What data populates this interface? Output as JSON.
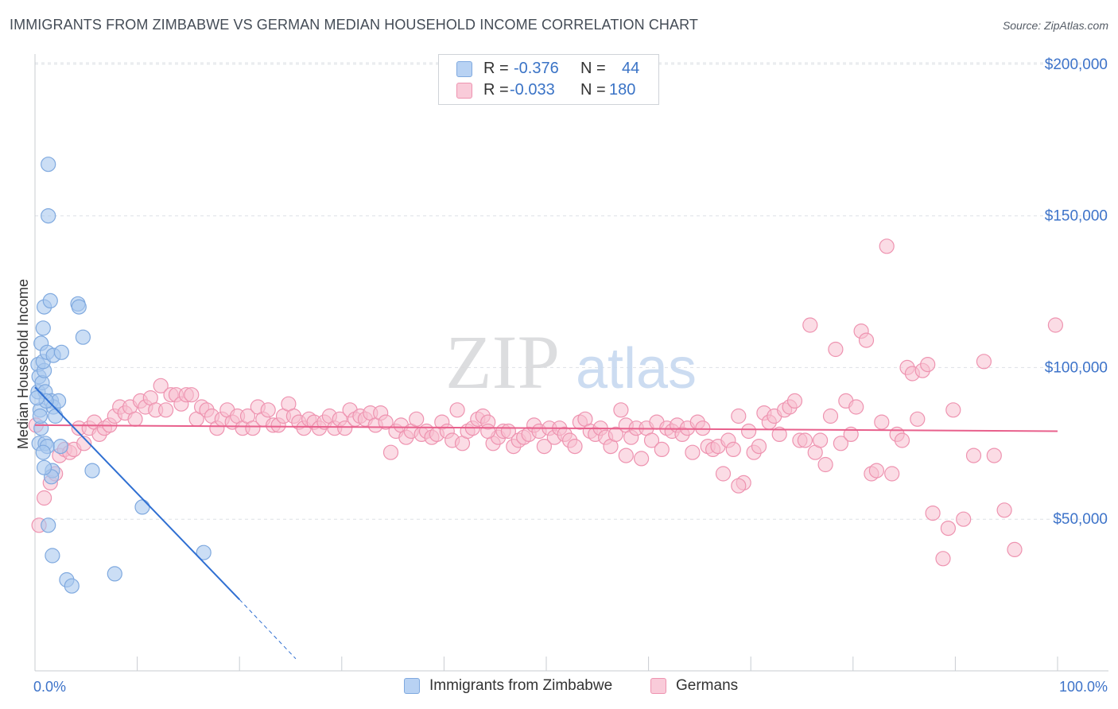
{
  "header": {
    "title": "IMMIGRANTS FROM ZIMBABWE VS GERMAN MEDIAN HOUSEHOLD INCOME CORRELATION CHART",
    "source": "Source: ZipAtlas.com"
  },
  "watermark": {
    "zip": "ZIP",
    "atlas": "atlas"
  },
  "legend": {
    "r_label": "R =",
    "n_label": "N =",
    "rows": [
      {
        "r": "-0.376",
        "n": "44"
      },
      {
        "r": "-0.033",
        "n": "180"
      }
    ]
  },
  "bottom_legend": [
    {
      "label": "Immigrants from Zimbabwe"
    },
    {
      "label": "Germans"
    }
  ],
  "colors": {
    "blue_fill": "#a9c8ef",
    "blue_stroke": "#7fa9df",
    "blue_line": "#2f6fd2",
    "pink_fill": "#f7bfd0",
    "pink_stroke": "#ee93b0",
    "pink_line": "#e8608c",
    "axis_text": "#3d73c9",
    "grid": "#dde1e6"
  },
  "chart_data": {
    "type": "scatter",
    "title": "IMMIGRANTS FROM ZIMBABWE VS GERMAN MEDIAN HOUSEHOLD INCOME CORRELATION CHART",
    "xlabel": "",
    "ylabel": "Median Household Income",
    "xlim": [
      0,
      100
    ],
    "ylim": [
      0,
      210000
    ],
    "x_tick_labels": [
      "0.0%",
      "100.0%"
    ],
    "y_ticks": [
      50000,
      100000,
      150000,
      200000
    ],
    "y_tick_labels": [
      "$50,000",
      "$100,000",
      "$150,000",
      "$200,000"
    ],
    "series": [
      {
        "name": "Immigrants from Zimbabwe",
        "r": -0.376,
        "n": 44,
        "trend": {
          "x0": 0,
          "y0": 93500,
          "x1": 20,
          "y1": 23500,
          "dash_x1": 25.5,
          "dash_y1": 4000
        },
        "points": [
          [
            0.3,
            101000
          ],
          [
            0.4,
            97000
          ],
          [
            0.3,
            92000
          ],
          [
            0.5,
            86000
          ],
          [
            0.6,
            80000
          ],
          [
            0.4,
            75000
          ],
          [
            0.7,
            95000
          ],
          [
            0.9,
            99000
          ],
          [
            0.8,
            102000
          ],
          [
            1.0,
            92000
          ],
          [
            0.6,
            108000
          ],
          [
            0.8,
            113000
          ],
          [
            0.9,
            120000
          ],
          [
            1.5,
            122000
          ],
          [
            1.2,
            105000
          ],
          [
            1.3,
            167000
          ],
          [
            1.3,
            150000
          ],
          [
            1.6,
            89000
          ],
          [
            1.8,
            87000
          ],
          [
            1.8,
            104000
          ],
          [
            2.3,
            89000
          ],
          [
            2.0,
            84000
          ],
          [
            2.6,
            105000
          ],
          [
            1.0,
            75000
          ],
          [
            1.2,
            74000
          ],
          [
            1.7,
            66000
          ],
          [
            0.8,
            72000
          ],
          [
            1.3,
            48000
          ],
          [
            1.6,
            64000
          ],
          [
            1.7,
            38000
          ],
          [
            3.1,
            30000
          ],
          [
            3.6,
            28000
          ],
          [
            4.2,
            121000
          ],
          [
            4.3,
            120000
          ],
          [
            4.7,
            110000
          ],
          [
            5.6,
            66000
          ],
          [
            7.8,
            32000
          ],
          [
            10.5,
            54000
          ],
          [
            16.5,
            39000
          ],
          [
            2.5,
            74000
          ],
          [
            0.9,
            67000
          ],
          [
            1.1,
            89000
          ],
          [
            0.5,
            84000
          ],
          [
            0.2,
            90000
          ]
        ]
      },
      {
        "name": "Germans",
        "r": -0.033,
        "n": 180,
        "trend": {
          "x0": 0,
          "y0": 81000,
          "x1": 100,
          "y1": 79000
        },
        "points": [
          [
            0.1,
            81000
          ],
          [
            0.4,
            48000
          ],
          [
            0.9,
            57000
          ],
          [
            1.5,
            62000
          ],
          [
            2.0,
            65000
          ],
          [
            2.4,
            71000
          ],
          [
            2.9,
            73000
          ],
          [
            3.4,
            72000
          ],
          [
            3.8,
            73000
          ],
          [
            4.3,
            80000
          ],
          [
            4.8,
            75000
          ],
          [
            5.3,
            80000
          ],
          [
            5.8,
            82000
          ],
          [
            6.3,
            78000
          ],
          [
            6.8,
            80000
          ],
          [
            7.3,
            81000
          ],
          [
            7.8,
            84000
          ],
          [
            8.3,
            87000
          ],
          [
            8.8,
            85000
          ],
          [
            9.3,
            87000
          ],
          [
            9.8,
            83000
          ],
          [
            10.3,
            89000
          ],
          [
            10.8,
            87000
          ],
          [
            11.3,
            90000
          ],
          [
            11.8,
            86000
          ],
          [
            12.3,
            94000
          ],
          [
            12.8,
            86000
          ],
          [
            13.3,
            91000
          ],
          [
            13.8,
            91000
          ],
          [
            14.3,
            88000
          ],
          [
            14.8,
            91000
          ],
          [
            15.3,
            91000
          ],
          [
            15.8,
            83000
          ],
          [
            16.3,
            87000
          ],
          [
            16.8,
            86000
          ],
          [
            17.3,
            84000
          ],
          [
            17.8,
            80000
          ],
          [
            18.3,
            83000
          ],
          [
            18.8,
            86000
          ],
          [
            19.3,
            82000
          ],
          [
            19.8,
            84000
          ],
          [
            20.3,
            80000
          ],
          [
            20.8,
            84000
          ],
          [
            21.3,
            80000
          ],
          [
            21.8,
            87000
          ],
          [
            22.3,
            83000
          ],
          [
            22.8,
            86000
          ],
          [
            23.3,
            81000
          ],
          [
            23.8,
            81000
          ],
          [
            24.3,
            84000
          ],
          [
            24.8,
            88000
          ],
          [
            25.3,
            84000
          ],
          [
            25.8,
            82000
          ],
          [
            26.3,
            80000
          ],
          [
            26.8,
            83000
          ],
          [
            27.3,
            82000
          ],
          [
            27.8,
            80000
          ],
          [
            28.3,
            82000
          ],
          [
            28.8,
            84000
          ],
          [
            29.3,
            80000
          ],
          [
            29.8,
            83000
          ],
          [
            30.3,
            80000
          ],
          [
            30.8,
            86000
          ],
          [
            31.3,
            83000
          ],
          [
            31.8,
            84000
          ],
          [
            32.3,
            83000
          ],
          [
            32.8,
            85000
          ],
          [
            33.3,
            81000
          ],
          [
            33.8,
            85000
          ],
          [
            34.3,
            82000
          ],
          [
            34.8,
            72000
          ],
          [
            35.3,
            79000
          ],
          [
            35.8,
            81000
          ],
          [
            36.3,
            77000
          ],
          [
            36.8,
            79000
          ],
          [
            37.3,
            83000
          ],
          [
            37.8,
            78000
          ],
          [
            38.3,
            79000
          ],
          [
            38.8,
            77000
          ],
          [
            39.3,
            78000
          ],
          [
            39.8,
            82000
          ],
          [
            40.3,
            79000
          ],
          [
            40.8,
            76000
          ],
          [
            41.3,
            86000
          ],
          [
            41.8,
            75000
          ],
          [
            42.3,
            79000
          ],
          [
            42.8,
            80000
          ],
          [
            43.3,
            83000
          ],
          [
            43.8,
            84000
          ],
          [
            44.3,
            82000
          ],
          [
            44.8,
            75000
          ],
          [
            45.3,
            77000
          ],
          [
            45.8,
            79000
          ],
          [
            46.3,
            79000
          ],
          [
            46.8,
            74000
          ],
          [
            47.3,
            76000
          ],
          [
            47.8,
            77000
          ],
          [
            48.3,
            78000
          ],
          [
            48.8,
            81000
          ],
          [
            49.3,
            79000
          ],
          [
            49.8,
            74000
          ],
          [
            50.3,
            80000
          ],
          [
            50.8,
            77000
          ],
          [
            51.3,
            80000
          ],
          [
            51.8,
            78000
          ],
          [
            52.3,
            76000
          ],
          [
            52.8,
            74000
          ],
          [
            53.3,
            82000
          ],
          [
            53.8,
            83000
          ],
          [
            54.3,
            79000
          ],
          [
            54.8,
            78000
          ],
          [
            55.3,
            80000
          ],
          [
            55.8,
            77000
          ],
          [
            56.3,
            74000
          ],
          [
            56.8,
            78000
          ],
          [
            57.3,
            86000
          ],
          [
            57.8,
            81000
          ],
          [
            58.3,
            77000
          ],
          [
            58.8,
            80000
          ],
          [
            59.3,
            70000
          ],
          [
            59.8,
            80000
          ],
          [
            60.3,
            76000
          ],
          [
            60.8,
            82000
          ],
          [
            61.3,
            73000
          ],
          [
            61.8,
            80000
          ],
          [
            62.3,
            79000
          ],
          [
            62.8,
            81000
          ],
          [
            63.3,
            78000
          ],
          [
            63.8,
            80000
          ],
          [
            64.3,
            72000
          ],
          [
            64.8,
            82000
          ],
          [
            65.3,
            80000
          ],
          [
            65.8,
            74000
          ],
          [
            66.3,
            73000
          ],
          [
            66.8,
            74000
          ],
          [
            67.3,
            65000
          ],
          [
            67.8,
            76000
          ],
          [
            68.3,
            73000
          ],
          [
            68.8,
            84000
          ],
          [
            69.3,
            62000
          ],
          [
            69.8,
            79000
          ],
          [
            70.3,
            72000
          ],
          [
            70.8,
            74000
          ],
          [
            71.3,
            85000
          ],
          [
            71.8,
            82000
          ],
          [
            72.3,
            84000
          ],
          [
            72.8,
            78000
          ],
          [
            73.3,
            86000
          ],
          [
            73.8,
            87000
          ],
          [
            74.3,
            89000
          ],
          [
            74.8,
            76000
          ],
          [
            75.3,
            76000
          ],
          [
            75.8,
            114000
          ],
          [
            76.3,
            72000
          ],
          [
            76.8,
            76000
          ],
          [
            77.3,
            68000
          ],
          [
            77.8,
            84000
          ],
          [
            78.3,
            106000
          ],
          [
            78.8,
            75000
          ],
          [
            79.3,
            89000
          ],
          [
            79.8,
            78000
          ],
          [
            80.3,
            87000
          ],
          [
            80.8,
            112000
          ],
          [
            81.3,
            109000
          ],
          [
            81.8,
            65000
          ],
          [
            82.3,
            66000
          ],
          [
            82.8,
            82000
          ],
          [
            83.3,
            140000
          ],
          [
            83.8,
            65000
          ],
          [
            84.3,
            78000
          ],
          [
            84.8,
            76000
          ],
          [
            85.3,
            100000
          ],
          [
            85.8,
            98000
          ],
          [
            86.3,
            83000
          ],
          [
            86.8,
            99000
          ],
          [
            87.3,
            101000
          ],
          [
            87.8,
            52000
          ],
          [
            88.8,
            37000
          ],
          [
            89.3,
            47000
          ],
          [
            89.8,
            86000
          ],
          [
            90.8,
            50000
          ],
          [
            91.8,
            71000
          ],
          [
            92.8,
            102000
          ],
          [
            93.8,
            71000
          ],
          [
            94.8,
            53000
          ],
          [
            95.8,
            40000
          ],
          [
            99.8,
            114000
          ],
          [
            68.8,
            61000
          ],
          [
            57.8,
            71000
          ],
          [
            44.3,
            79000
          ]
        ]
      }
    ]
  }
}
